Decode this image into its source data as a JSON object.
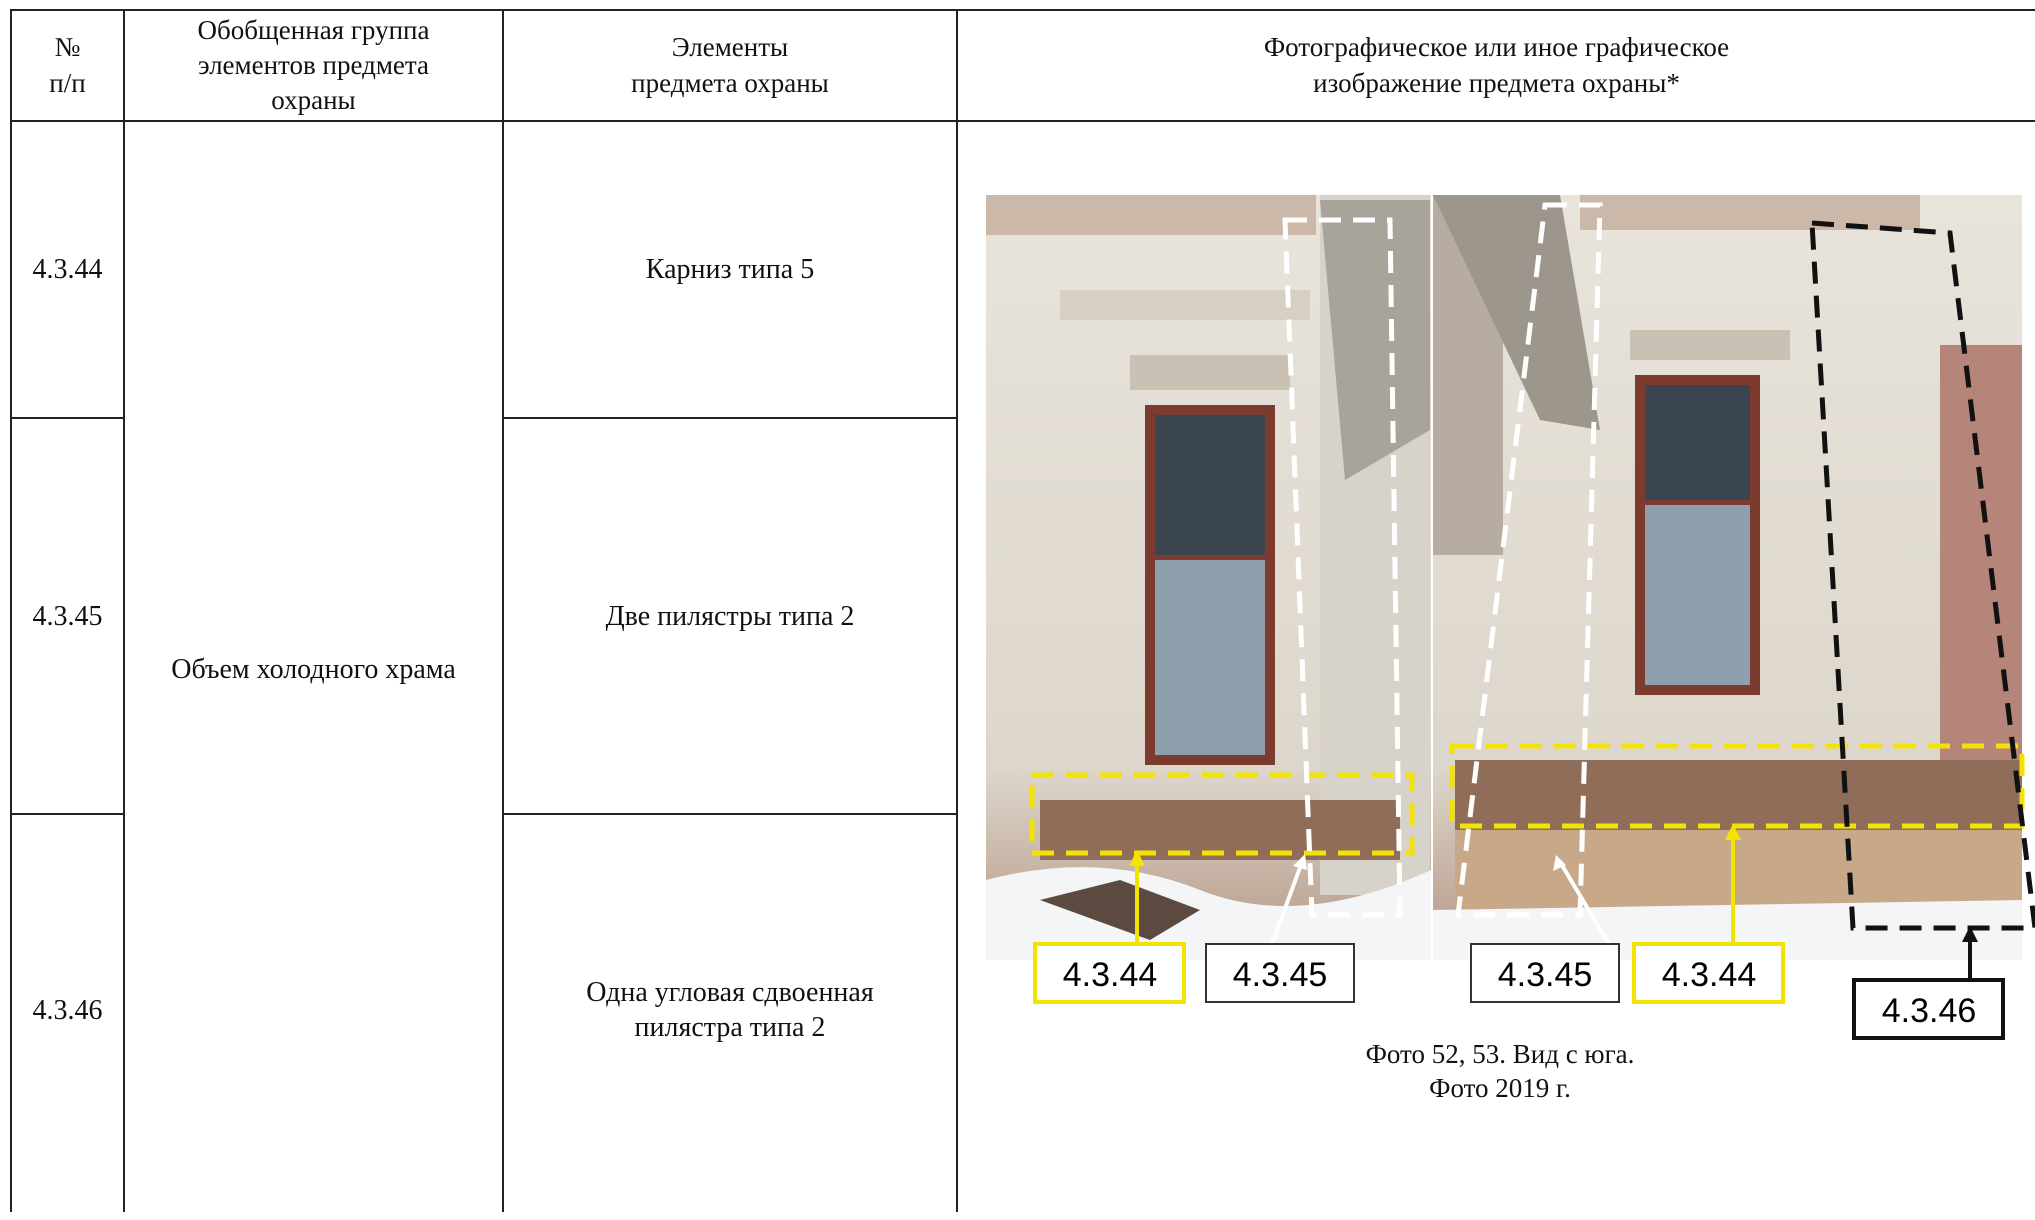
{
  "header": {
    "number": [
      "№",
      "п/п"
    ],
    "group": [
      "Обобщенная группа",
      "элементов предмета",
      "охраны"
    ],
    "elements": [
      "Элементы",
      "предмета охраны"
    ],
    "image": [
      "Фотографическое или иное графическое",
      "изображение предмета охраны*"
    ]
  },
  "table": {
    "group": "Объем холодного храма",
    "rows": [
      {
        "number": "4.3.44",
        "element": [
          "Карниз типа 5"
        ]
      },
      {
        "number": "4.3.45",
        "element": [
          "Две пилястры типа 2"
        ]
      },
      {
        "number": "4.3.46",
        "element": [
          "Одна угловая сдвоенная",
          "пилястра типа 2"
        ]
      }
    ]
  },
  "photo": {
    "labels": [
      "4.3.44",
      "4.3.45",
      "4.3.45",
      "4.3.44",
      "4.3.46"
    ],
    "caption": [
      "Фото 52, 53. Вид с юга.",
      "Фото 2019 г."
    ]
  }
}
